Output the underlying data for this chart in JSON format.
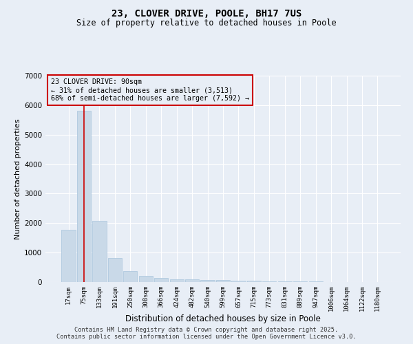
{
  "title1": "23, CLOVER DRIVE, POOLE, BH17 7US",
  "title2": "Size of property relative to detached houses in Poole",
  "xlabel": "Distribution of detached houses by size in Poole",
  "ylabel": "Number of detached properties",
  "categories": [
    "17sqm",
    "75sqm",
    "133sqm",
    "191sqm",
    "250sqm",
    "308sqm",
    "366sqm",
    "424sqm",
    "482sqm",
    "540sqm",
    "599sqm",
    "657sqm",
    "715sqm",
    "773sqm",
    "831sqm",
    "889sqm",
    "947sqm",
    "1006sqm",
    "1064sqm",
    "1122sqm",
    "1180sqm"
  ],
  "values": [
    1780,
    5820,
    2080,
    820,
    370,
    210,
    135,
    100,
    85,
    75,
    65,
    55,
    45,
    35,
    25,
    18,
    12,
    8,
    5,
    3,
    2
  ],
  "bar_color": "#c9d9e8",
  "bar_edge_color": "#a8c4dc",
  "bg_color": "#e8eef6",
  "grid_color": "#ffffff",
  "vline_x": 1,
  "vline_color": "#cc0000",
  "annotation_line1": "23 CLOVER DRIVE: 90sqm",
  "annotation_line2": "← 31% of detached houses are smaller (3,513)",
  "annotation_line3": "68% of semi-detached houses are larger (7,592) →",
  "annotation_box_color": "#cc0000",
  "ylim": [
    0,
    7000
  ],
  "yticks": [
    0,
    1000,
    2000,
    3000,
    4000,
    5000,
    6000,
    7000
  ],
  "footer1": "Contains HM Land Registry data © Crown copyright and database right 2025.",
  "footer2": "Contains public sector information licensed under the Open Government Licence v3.0."
}
